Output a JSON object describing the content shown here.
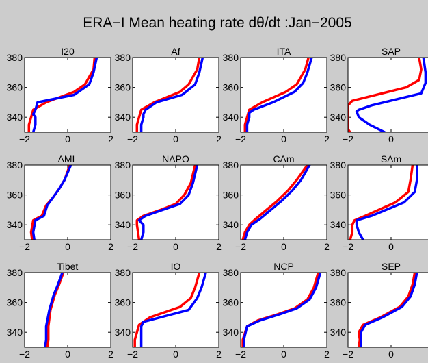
{
  "title": "ERA−I  Mean heating rate dθ/dt  :Jan−2005",
  "colors": {
    "background": "#cccccc",
    "red": "#ff0000",
    "blue": "#0000ff",
    "axes": "#000000"
  },
  "chart_data": [
    {
      "type": "line",
      "title": "I20",
      "xlim": [
        -2,
        2
      ],
      "ylim": [
        330,
        380
      ],
      "xticks": [
        "−2",
        "0",
        "2"
      ],
      "yticks": [
        "340",
        "360",
        "380"
      ],
      "series": [
        {
          "color": "red",
          "x": [
            -1.8,
            -1.8,
            -1.7,
            -1.6,
            -1.0,
            0.3,
            0.8,
            1.0,
            1.2,
            1.25
          ],
          "y": [
            330,
            335,
            340,
            345,
            350,
            357,
            362,
            367,
            372,
            380
          ]
        },
        {
          "color": "blue",
          "x": [
            -1.6,
            -1.5,
            -1.5,
            -1.6,
            -1.5,
            -1.4,
            0.3,
            1.0,
            1.2,
            1.35
          ],
          "y": [
            330,
            335,
            340,
            342,
            345,
            350,
            355,
            362,
            370,
            380
          ]
        }
      ]
    },
    {
      "type": "line",
      "title": "Af",
      "xlim": [
        -2,
        2
      ],
      "ylim": [
        330,
        380
      ],
      "xticks": [
        "−2",
        "0",
        "2"
      ],
      "yticks": [
        "340",
        "360",
        "380"
      ],
      "series": [
        {
          "color": "red",
          "x": [
            -1.8,
            -1.8,
            -1.7,
            -1.6,
            -1.0,
            0.2,
            0.6,
            0.8,
            1.0,
            1.1
          ],
          "y": [
            330,
            335,
            340,
            345,
            350,
            357,
            362,
            367,
            372,
            380
          ]
        },
        {
          "color": "blue",
          "x": [
            -1.6,
            -1.6,
            -1.5,
            -1.5,
            -1.4,
            -0.9,
            0.3,
            0.9,
            1.1,
            1.25
          ],
          "y": [
            330,
            335,
            340,
            342,
            345,
            350,
            355,
            362,
            370,
            380
          ]
        }
      ]
    },
    {
      "type": "line",
      "title": "ITA",
      "xlim": [
        -2,
        2
      ],
      "ylim": [
        330,
        380
      ],
      "xticks": [
        "−2",
        "0",
        "2"
      ],
      "yticks": [
        "340",
        "360",
        "380"
      ],
      "series": [
        {
          "color": "red",
          "x": [
            -1.8,
            -1.8,
            -1.7,
            -1.6,
            -1.0,
            0.1,
            0.6,
            0.8,
            1.0,
            1.15
          ],
          "y": [
            330,
            335,
            340,
            345,
            350,
            357,
            362,
            367,
            372,
            380
          ]
        },
        {
          "color": "blue",
          "x": [
            -1.7,
            -1.7,
            -1.6,
            -1.6,
            -1.4,
            -0.5,
            0.5,
            0.9,
            1.1,
            1.3
          ],
          "y": [
            330,
            335,
            340,
            343,
            345,
            350,
            357,
            363,
            370,
            380
          ]
        }
      ]
    },
    {
      "type": "line",
      "title": "SAP",
      "xlim": [
        -2,
        2
      ],
      "ylim": [
        330,
        380
      ],
      "xticks": [
        "−2",
        "0",
        "2"
      ],
      "yticks": [
        "340",
        "360",
        "380"
      ],
      "series": [
        {
          "color": "red",
          "x": [
            -1.9,
            -2.0,
            -2.0,
            -2.0,
            -1.8,
            0.7,
            1.3,
            1.4,
            1.3
          ],
          "y": [
            330,
            332,
            335,
            348,
            351,
            360,
            365,
            372,
            380
          ]
        },
        {
          "color": "blue",
          "x": [
            -0.3,
            -1.0,
            -1.5,
            -1.6,
            -1.5,
            -0.9,
            1.4,
            1.6,
            1.6,
            1.5
          ],
          "y": [
            330,
            335,
            340,
            344,
            345,
            348,
            356,
            363,
            370,
            380
          ]
        }
      ]
    },
    {
      "type": "line",
      "title": "AML",
      "xlim": [
        -2,
        2
      ],
      "ylim": [
        330,
        380
      ],
      "xticks": [
        "−2",
        "0",
        "2"
      ],
      "yticks": [
        "340",
        "360",
        "380"
      ],
      "series": [
        {
          "color": "red",
          "x": [
            -1.65,
            -1.7,
            -1.6,
            -1.2,
            -1.0,
            -0.7,
            -0.4,
            -0.15,
            0.1
          ],
          "y": [
            330,
            335,
            343,
            346,
            353,
            358,
            364,
            370,
            380
          ]
        },
        {
          "color": "blue",
          "x": [
            -1.55,
            -1.6,
            -1.5,
            -1.1,
            -0.95,
            -0.7,
            -0.4,
            -0.15,
            0.15
          ],
          "y": [
            330,
            335,
            343,
            346,
            353,
            358,
            364,
            370,
            380
          ]
        }
      ]
    },
    {
      "type": "line",
      "title": "NAPO",
      "xlim": [
        -2,
        2
      ],
      "ylim": [
        330,
        380
      ],
      "xticks": [
        "−2",
        "0",
        "2"
      ],
      "yticks": [
        "340",
        "360",
        "380"
      ],
      "series": [
        {
          "color": "red",
          "x": [
            -1.7,
            -1.75,
            -1.8,
            -1.8,
            -1.5,
            -0.7,
            0.0,
            0.4,
            0.7,
            0.9
          ],
          "y": [
            330,
            335,
            340,
            343,
            346,
            350,
            354,
            360,
            368,
            380
          ]
        },
        {
          "color": "blue",
          "x": [
            -1.6,
            -1.5,
            -1.5,
            -1.7,
            -1.4,
            -0.6,
            0.2,
            0.6,
            0.8,
            1.0
          ],
          "y": [
            330,
            335,
            340,
            343,
            346,
            350,
            354,
            360,
            368,
            380
          ]
        }
      ]
    },
    {
      "type": "line",
      "title": "CAm",
      "xlim": [
        -2,
        2
      ],
      "ylim": [
        330,
        380
      ],
      "xticks": [
        "−2",
        "0",
        "2"
      ],
      "yticks": [
        "340",
        "360",
        "380"
      ],
      "series": [
        {
          "color": "red",
          "x": [
            -1.9,
            -1.8,
            -1.6,
            -1.3,
            -0.8,
            -0.3,
            0.2,
            0.6,
            1.1
          ],
          "y": [
            330,
            335,
            340,
            344,
            350,
            356,
            363,
            370,
            380
          ]
        },
        {
          "color": "blue",
          "x": [
            -1.8,
            -1.7,
            -1.5,
            -1.1,
            -0.6,
            -0.1,
            0.4,
            0.8,
            1.2
          ],
          "y": [
            330,
            335,
            340,
            344,
            350,
            356,
            363,
            370,
            380
          ]
        }
      ]
    },
    {
      "type": "line",
      "title": "SAm",
      "xlim": [
        -2,
        2
      ],
      "ylim": [
        330,
        380
      ],
      "xticks": [
        "−2",
        "0",
        "2"
      ],
      "yticks": [
        "340",
        "360",
        "380"
      ],
      "series": [
        {
          "color": "red",
          "x": [
            -1.9,
            -1.8,
            -1.8,
            -1.7,
            -1.2,
            0.2,
            0.8,
            0.9,
            1.0
          ],
          "y": [
            330,
            335,
            340,
            343,
            346,
            355,
            362,
            370,
            380
          ]
        },
        {
          "color": "blue",
          "x": [
            -1.3,
            -1.5,
            -1.6,
            -1.6,
            -0.9,
            0.6,
            1.1,
            1.2,
            1.2
          ],
          "y": [
            330,
            335,
            340,
            343,
            346,
            355,
            362,
            370,
            380
          ]
        }
      ]
    },
    {
      "type": "line",
      "title": "Tibet",
      "xlim": [
        -2,
        2
      ],
      "ylim": [
        330,
        380
      ],
      "xticks": [
        "−2",
        "0",
        "2"
      ],
      "yticks": [
        "340",
        "360",
        "380"
      ],
      "series": [
        {
          "color": "red",
          "x": [
            -0.95,
            -0.9,
            -0.9,
            -0.8,
            -0.6,
            -0.4,
            -0.2
          ],
          "y": [
            330,
            335,
            344,
            355,
            365,
            372,
            380
          ]
        },
        {
          "color": "blue",
          "x": [
            -1.05,
            -1.0,
            -1.0,
            -0.85,
            -0.65,
            -0.45,
            -0.25
          ],
          "y": [
            330,
            335,
            344,
            355,
            365,
            372,
            380
          ]
        }
      ]
    },
    {
      "type": "line",
      "title": "IO",
      "xlim": [
        -2,
        2
      ],
      "ylim": [
        330,
        380
      ],
      "xticks": [
        "−2",
        "0",
        "2"
      ],
      "yticks": [
        "340",
        "360",
        "380"
      ],
      "series": [
        {
          "color": "red",
          "x": [
            -1.9,
            -1.9,
            -1.8,
            -1.7,
            -1.2,
            0.2,
            0.7,
            0.9,
            1.1
          ],
          "y": [
            330,
            335,
            340,
            345,
            350,
            357,
            363,
            370,
            380
          ]
        },
        {
          "color": "blue",
          "x": [
            -1.6,
            -1.6,
            -1.6,
            -1.6,
            -1.5,
            0.6,
            1.0,
            1.2,
            1.4
          ],
          "y": [
            330,
            335,
            340,
            344,
            347,
            355,
            363,
            370,
            380
          ]
        }
      ]
    },
    {
      "type": "line",
      "title": "NCP",
      "xlim": [
        -2,
        2
      ],
      "ylim": [
        330,
        380
      ],
      "xticks": [
        "−2",
        "0",
        "2"
      ],
      "yticks": [
        "340",
        "360",
        "380"
      ],
      "series": [
        {
          "color": "red",
          "x": [
            -1.9,
            -1.9,
            -1.7,
            -1.2,
            -0.3,
            0.5,
            1.1,
            1.4,
            1.6
          ],
          "y": [
            330,
            335,
            344,
            348,
            352,
            356,
            362,
            370,
            380
          ]
        },
        {
          "color": "blue",
          "x": [
            -1.85,
            -1.85,
            -1.7,
            -1.1,
            -0.2,
            0.6,
            1.2,
            1.5,
            1.7
          ],
          "y": [
            330,
            335,
            344,
            348,
            352,
            356,
            362,
            370,
            380
          ]
        }
      ]
    },
    {
      "type": "line",
      "title": "SEP",
      "xlim": [
        -2,
        2
      ],
      "ylim": [
        330,
        380
      ],
      "xticks": [
        "−2",
        "0",
        "2"
      ],
      "yticks": [
        "340",
        "360",
        "380"
      ],
      "series": [
        {
          "color": "red",
          "x": [
            -1.5,
            -1.45,
            -1.5,
            -1.3,
            -0.5,
            0.4,
            0.8,
            1.0,
            1.1
          ],
          "y": [
            330,
            335,
            340,
            345,
            350,
            357,
            364,
            372,
            380
          ]
        },
        {
          "color": "blue",
          "x": [
            -1.4,
            -1.4,
            -1.4,
            -1.2,
            -0.4,
            0.5,
            0.9,
            1.1,
            1.2
          ],
          "y": [
            330,
            335,
            340,
            345,
            350,
            357,
            364,
            372,
            380
          ]
        }
      ]
    }
  ]
}
